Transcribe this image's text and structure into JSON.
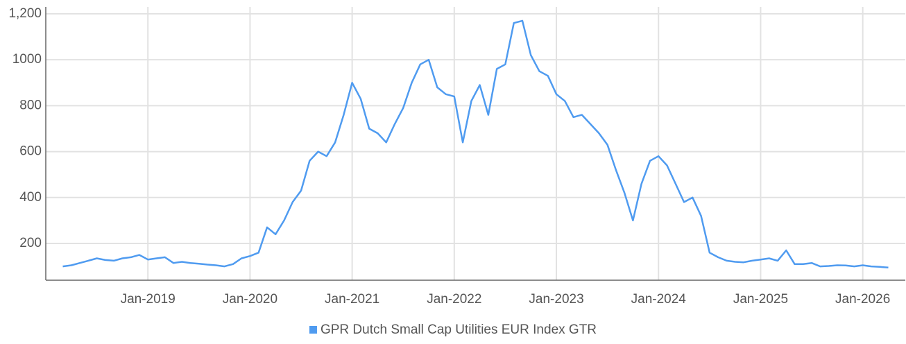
{
  "chart_data": {
    "type": "line",
    "x": [
      "2018-03",
      "2018-04",
      "2018-05",
      "2018-06",
      "2018-07",
      "2018-08",
      "2018-09",
      "2018-10",
      "2018-11",
      "2018-12",
      "2019-01",
      "2019-02",
      "2019-03",
      "2019-04",
      "2019-05",
      "2019-06",
      "2019-07",
      "2019-08",
      "2019-09",
      "2019-10",
      "2019-11",
      "2019-12",
      "2020-01",
      "2020-02",
      "2020-03",
      "2020-04",
      "2020-05",
      "2020-06",
      "2020-07",
      "2020-08",
      "2020-09",
      "2020-10",
      "2020-11",
      "2020-12",
      "2021-01",
      "2021-02",
      "2021-03",
      "2021-04",
      "2021-05",
      "2021-06",
      "2021-07",
      "2021-08",
      "2021-09",
      "2021-10",
      "2021-11",
      "2021-12",
      "2022-01",
      "2022-02",
      "2022-03",
      "2022-04",
      "2022-05",
      "2022-06",
      "2022-07",
      "2022-08",
      "2022-09",
      "2022-10",
      "2022-11",
      "2022-12",
      "2023-01",
      "2023-02",
      "2023-03",
      "2023-04",
      "2023-05",
      "2023-06",
      "2023-07",
      "2023-08",
      "2023-09",
      "2023-10",
      "2023-11",
      "2023-12",
      "2024-01",
      "2024-02",
      "2024-03",
      "2024-04",
      "2024-05",
      "2024-06",
      "2024-07",
      "2024-08",
      "2024-09",
      "2024-10",
      "2024-11",
      "2024-12",
      "2025-01",
      "2025-02",
      "2025-03",
      "2025-04",
      "2025-05",
      "2025-06",
      "2025-07",
      "2025-08",
      "2025-09",
      "2025-10",
      "2025-11",
      "2025-12",
      "2026-01",
      "2026-02",
      "2026-03",
      "2026-04"
    ],
    "series": [
      {
        "name": "GPR Dutch Small Cap Utilities EUR Index GTR",
        "color": "#4f9bf0",
        "values": [
          100,
          105,
          115,
          125,
          135,
          128,
          125,
          135,
          140,
          150,
          130,
          135,
          140,
          115,
          120,
          115,
          112,
          108,
          105,
          100,
          110,
          135,
          145,
          160,
          270,
          240,
          300,
          380,
          430,
          560,
          600,
          580,
          640,
          760,
          900,
          830,
          700,
          680,
          640,
          720,
          790,
          900,
          980,
          1000,
          880,
          850,
          840,
          640,
          820,
          890,
          760,
          960,
          980,
          1160,
          1170,
          1020,
          950,
          930,
          850,
          820,
          750,
          760,
          720,
          680,
          630,
          520,
          420,
          300,
          460,
          560,
          580,
          540,
          460,
          380,
          400,
          320,
          160,
          140,
          125,
          120,
          118,
          125,
          130,
          135,
          125,
          170,
          110,
          110,
          115,
          100,
          102,
          105,
          104,
          100,
          105,
          100,
          98,
          95
        ]
      }
    ],
    "xlim": [
      "2018-01",
      "2026-06"
    ],
    "xticks": [
      {
        "value": "2019-01",
        "label": "Jan-2019"
      },
      {
        "value": "2020-01",
        "label": "Jan-2020"
      },
      {
        "value": "2021-01",
        "label": "Jan-2021"
      },
      {
        "value": "2022-01",
        "label": "Jan-2022"
      },
      {
        "value": "2023-01",
        "label": "Jan-2023"
      },
      {
        "value": "2024-01",
        "label": "Jan-2024"
      },
      {
        "value": "2025-01",
        "label": "Jan-2025"
      },
      {
        "value": "2026-01",
        "label": "Jan-2026"
      }
    ],
    "ylim": [
      40,
      1230
    ],
    "yticks": [
      200,
      400,
      600,
      800,
      1000,
      {
        "value": 1200,
        "label": "1,200"
      }
    ],
    "grid": true,
    "legend": "bottom"
  }
}
